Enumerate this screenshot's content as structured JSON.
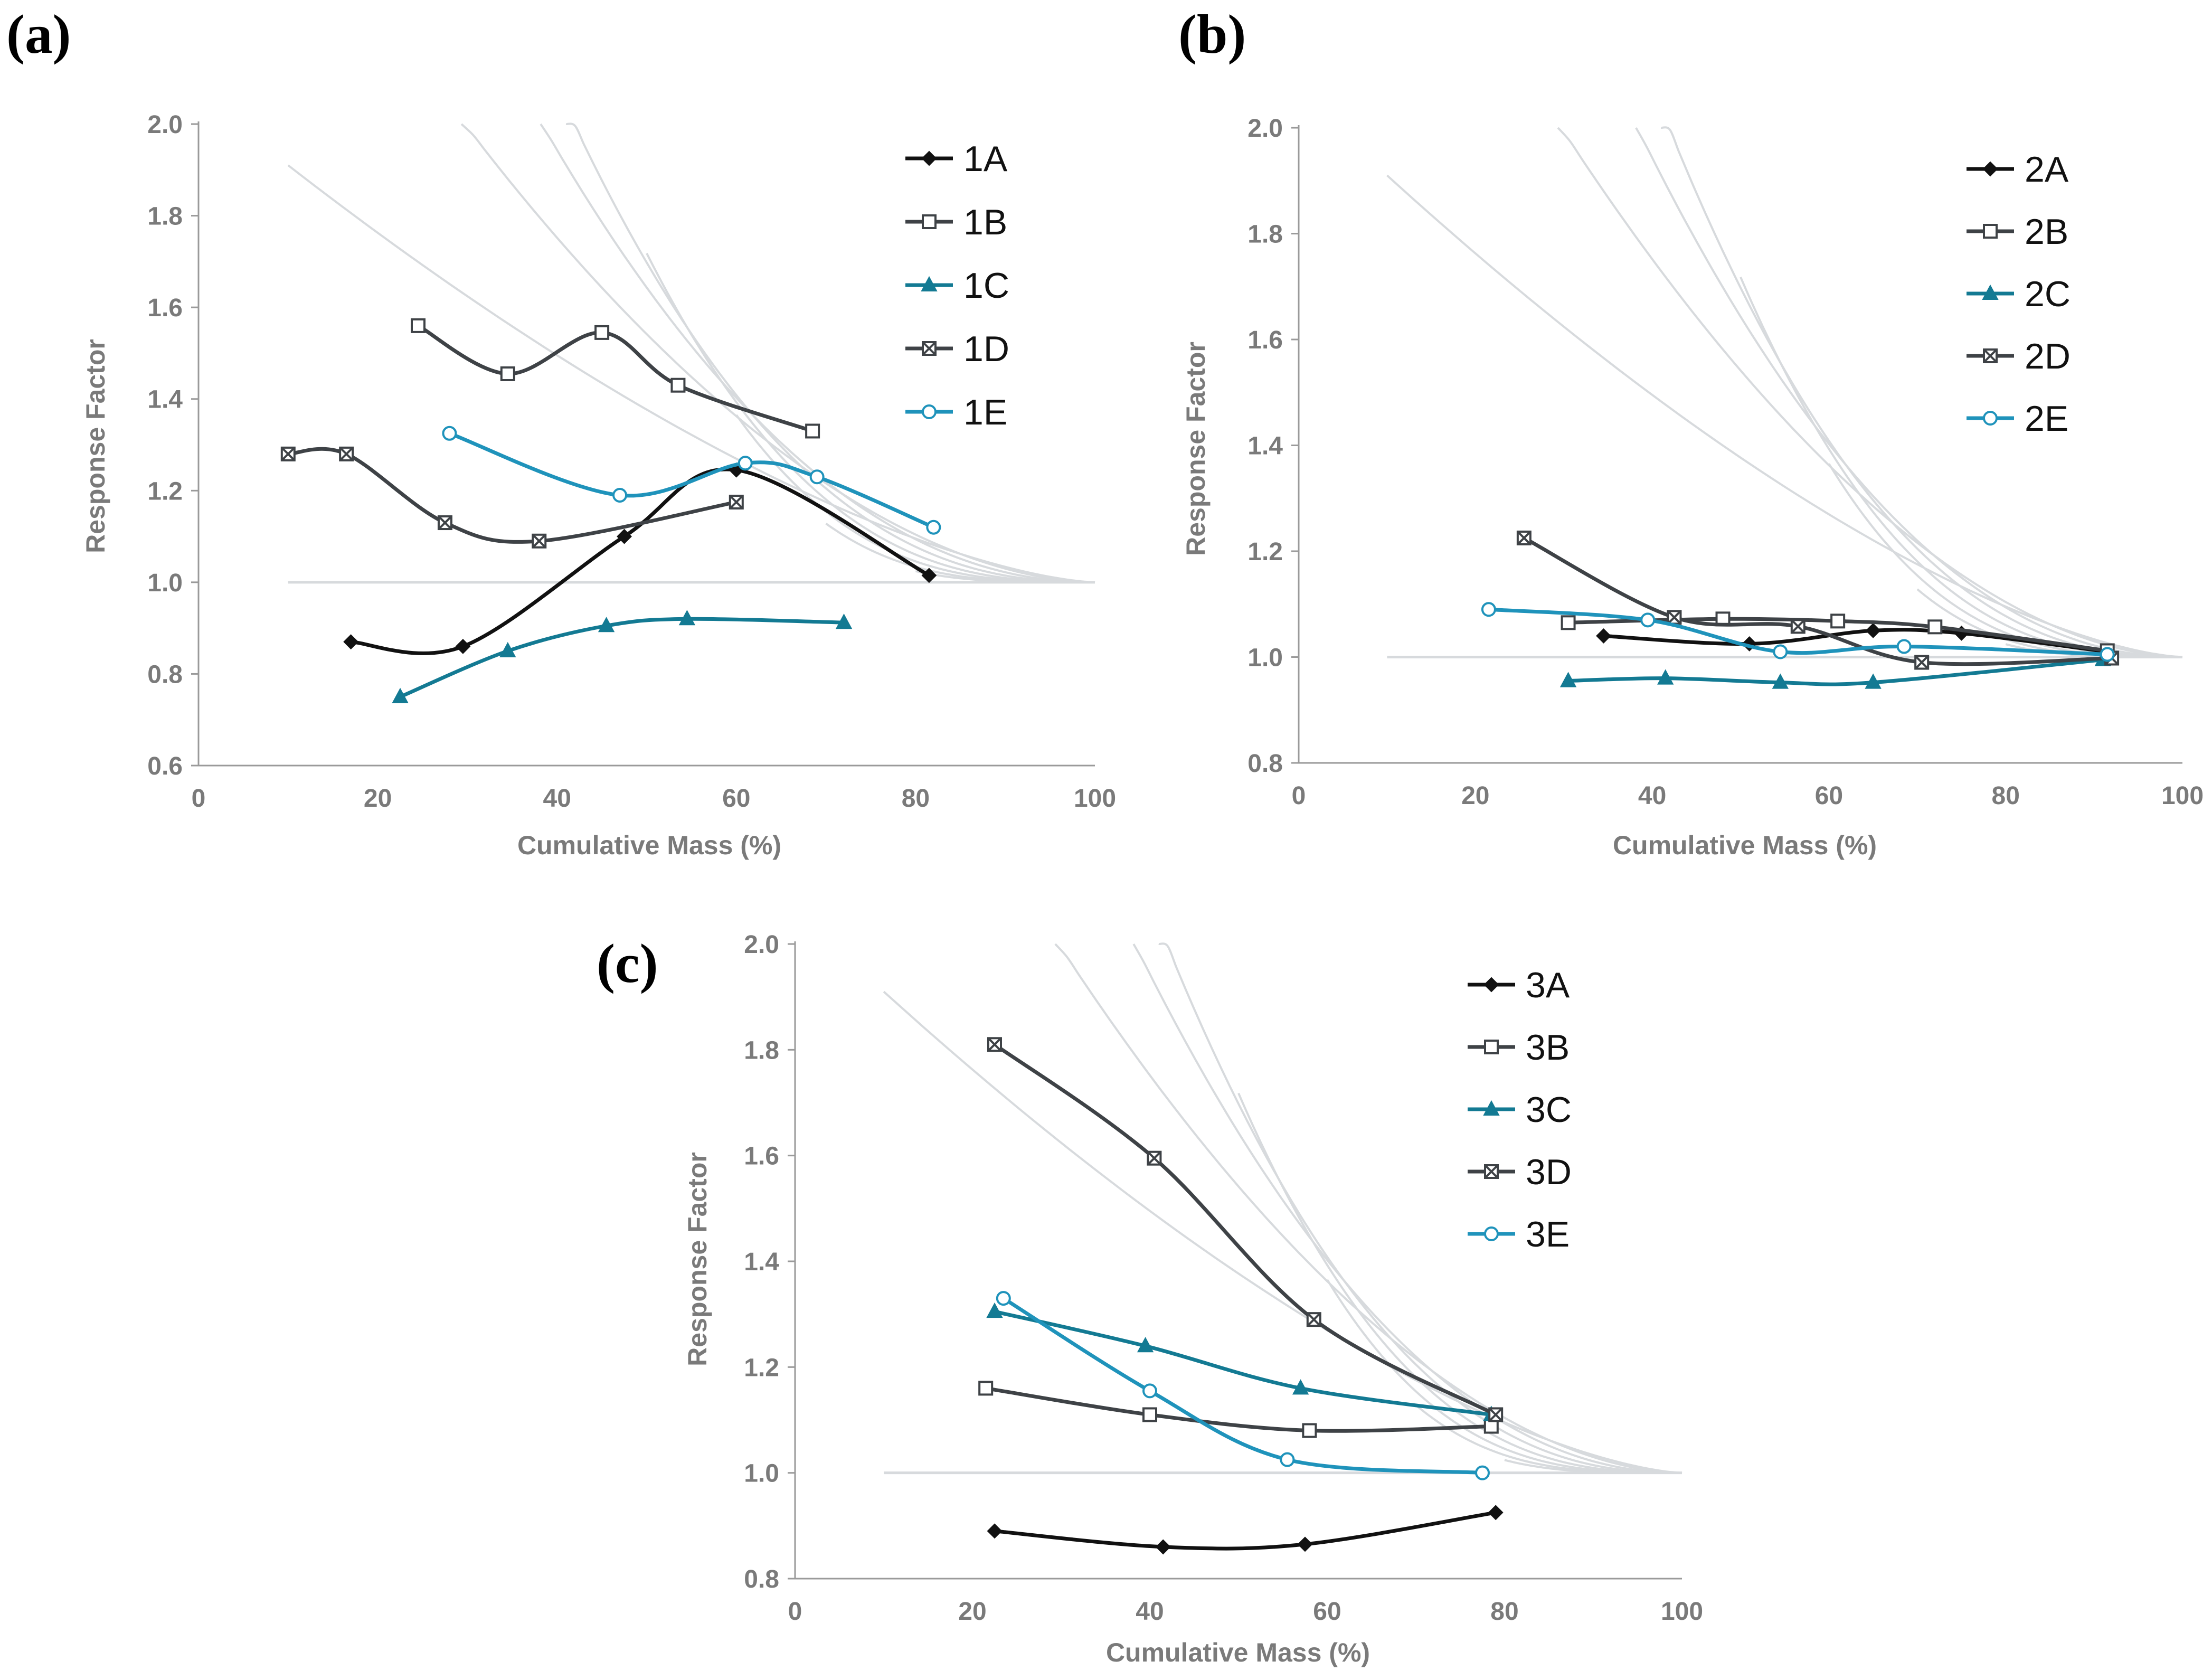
{
  "colors": {
    "black": "#111111",
    "dark_gray": "#3e4246",
    "teal": "#137a93",
    "light_blue": "#1f93bb",
    "guide": "#d7dadd",
    "axis": "#9a9a9a",
    "tick_text": "#7a7a7a"
  },
  "chart_data": [
    {
      "panel": "(a)",
      "type": "line",
      "xlabel": "Cumulative Mass (%)",
      "ylabel": "Response Factor",
      "xlim": [
        0,
        100
      ],
      "ylim": [
        0.6,
        2.0
      ],
      "xticks": [
        "0",
        "20",
        "40",
        "60",
        "80",
        "100"
      ],
      "yticks": [
        "0.6",
        "0.8",
        "1.0",
        "1.2",
        "1.4",
        "1.6",
        "1.8",
        "2.0"
      ],
      "series": [
        {
          "name": "1A",
          "marker": "diamond",
          "color": "#111111",
          "x": [
            17,
            29.5,
            47.5,
            60,
            81.5
          ],
          "y": [
            0.87,
            0.86,
            1.1,
            1.245,
            1.015
          ]
        },
        {
          "name": "1B",
          "marker": "square-open",
          "color": "#3e4246",
          "x": [
            24.5,
            34.5,
            45,
            53.5,
            68.5
          ],
          "y": [
            1.56,
            1.455,
            1.545,
            1.43,
            1.33
          ]
        },
        {
          "name": "1C",
          "marker": "triangle",
          "color": "#137a93",
          "x": [
            22.5,
            34.5,
            45.5,
            54.5,
            72
          ],
          "y": [
            0.75,
            0.85,
            0.905,
            0.92,
            0.912
          ]
        },
        {
          "name": "1D",
          "marker": "square-x",
          "color": "#3e4246",
          "x": [
            10,
            16.5,
            27.5,
            38,
            60
          ],
          "y": [
            1.28,
            1.28,
            1.13,
            1.09,
            1.175
          ]
        },
        {
          "name": "1E",
          "marker": "circle-open",
          "color": "#1f93bb",
          "x": [
            28,
            47,
            61,
            69,
            82
          ],
          "y": [
            1.325,
            1.19,
            1.26,
            1.23,
            1.12
          ]
        }
      ]
    },
    {
      "panel": "(b)",
      "type": "line",
      "xlabel": "Cumulative Mass (%)",
      "ylabel": "Response Factor",
      "xlim": [
        0,
        100
      ],
      "ylim": [
        0.8,
        2.0
      ],
      "xticks": [
        "0",
        "20",
        "40",
        "60",
        "80",
        "100"
      ],
      "yticks": [
        "0.8",
        "1.0",
        "1.2",
        "1.4",
        "1.6",
        "1.8",
        "2.0"
      ],
      "series": [
        {
          "name": "2A",
          "marker": "diamond",
          "color": "#111111",
          "x": [
            34.5,
            51,
            65,
            75,
            91.5
          ],
          "y": [
            1.04,
            1.025,
            1.05,
            1.045,
            1.01
          ]
        },
        {
          "name": "2B",
          "marker": "square-open",
          "color": "#3e4246",
          "x": [
            30.5,
            48,
            61,
            72,
            91.5
          ],
          "y": [
            1.065,
            1.072,
            1.068,
            1.057,
            1.012
          ]
        },
        {
          "name": "2C",
          "marker": "triangle",
          "color": "#137a93",
          "x": [
            30.5,
            41.5,
            54.5,
            65,
            91
          ],
          "y": [
            0.955,
            0.96,
            0.952,
            0.952,
            0.995
          ]
        },
        {
          "name": "2D",
          "marker": "square-x",
          "color": "#3e4246",
          "x": [
            25.5,
            42.5,
            56.5,
            70.5,
            92
          ],
          "y": [
            1.225,
            1.075,
            1.058,
            0.99,
            0.998
          ]
        },
        {
          "name": "2E",
          "marker": "circle-open",
          "color": "#1f93bb",
          "x": [
            21.5,
            39.5,
            54.5,
            68.5,
            91.5
          ],
          "y": [
            1.09,
            1.07,
            1.01,
            1.02,
            1.005
          ]
        }
      ]
    },
    {
      "panel": "(c)",
      "type": "line",
      "xlabel": "Cumulative Mass (%)",
      "ylabel": "Response Factor",
      "xlim": [
        0,
        100
      ],
      "ylim": [
        0.8,
        2.0
      ],
      "xticks": [
        "0",
        "20",
        "40",
        "60",
        "80",
        "100"
      ],
      "yticks": [
        "0.8",
        "1.0",
        "1.2",
        "1.4",
        "1.6",
        "1.8",
        "2.0"
      ],
      "series": [
        {
          "name": "3A",
          "marker": "diamond",
          "color": "#111111",
          "x": [
            22.5,
            41.5,
            57.5,
            79
          ],
          "y": [
            0.89,
            0.86,
            0.865,
            0.925
          ]
        },
        {
          "name": "3B",
          "marker": "square-open",
          "color": "#3e4246",
          "x": [
            21.5,
            40,
            58,
            78.5
          ],
          "y": [
            1.16,
            1.11,
            1.08,
            1.088
          ]
        },
        {
          "name": "3C",
          "marker": "triangle",
          "color": "#137a93",
          "x": [
            22.5,
            39.5,
            57,
            78.5
          ],
          "y": [
            1.305,
            1.24,
            1.16,
            1.11
          ]
        },
        {
          "name": "3D",
          "marker": "square-x",
          "color": "#3e4246",
          "x": [
            22.5,
            40.5,
            58.5,
            79
          ],
          "y": [
            1.81,
            1.595,
            1.29,
            1.11
          ]
        },
        {
          "name": "3E",
          "marker": "circle-open",
          "color": "#1f93bb",
          "x": [
            23.5,
            40,
            55.5,
            77.5
          ],
          "y": [
            1.33,
            1.155,
            1.025,
            1.0
          ]
        }
      ]
    }
  ]
}
